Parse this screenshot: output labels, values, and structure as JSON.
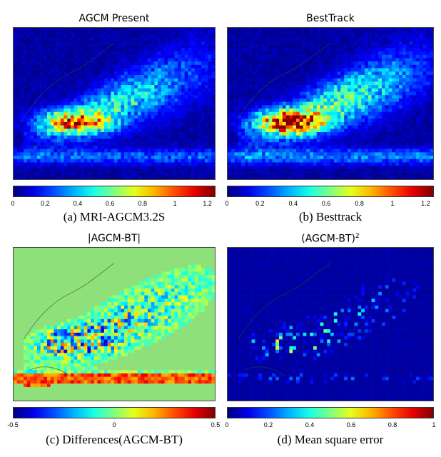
{
  "chart_data": [
    {
      "type": "heatmap",
      "title": "AGCM Present",
      "caption": "(a) MRI-AGCM3.2S",
      "colormap": "jet",
      "clim": [
        0,
        1.25
      ],
      "colorbar_ticks": [
        "0",
        "0.2",
        "0.4",
        "0.6",
        "0.8",
        "1",
        "1.2"
      ],
      "colorbar_tick_values": [
        0,
        0.2,
        0.4,
        0.6,
        0.8,
        1.0,
        1.2
      ],
      "field": "density",
      "peak": 1.0
    },
    {
      "type": "heatmap",
      "title": "BestTrack",
      "caption": "(b) Besttrack",
      "colormap": "jet",
      "clim": [
        0,
        1.25
      ],
      "colorbar_ticks": [
        "0",
        "0.2",
        "0.4",
        "0.6",
        "0.8",
        "1",
        "1.2"
      ],
      "colorbar_tick_values": [
        0,
        0.2,
        0.4,
        0.6,
        0.8,
        1.0,
        1.2
      ],
      "field": "density",
      "peak": 1.2
    },
    {
      "type": "heatmap",
      "title": "|AGCM-BT|",
      "caption": "(c) Differences(AGCM-BT)",
      "colormap": "jet",
      "clim": [
        -0.5,
        0.5
      ],
      "colorbar_ticks": [
        "-0.5",
        "0",
        "0.5"
      ],
      "colorbar_tick_values": [
        -0.5,
        0,
        0.5
      ],
      "field": "difference",
      "background": "#8ee07a"
    },
    {
      "type": "heatmap",
      "title": "(AGCM-BT)",
      "title_superscript": "2",
      "caption": "(d) Mean square error",
      "colormap": "jet",
      "clim": [
        0,
        1
      ],
      "colorbar_ticks": [
        "0",
        "0.2",
        "0.4",
        "0.6",
        "0.8",
        "1"
      ],
      "colorbar_tick_values": [
        0,
        0.2,
        0.4,
        0.6,
        0.8,
        1.0
      ],
      "field": "mse"
    }
  ]
}
